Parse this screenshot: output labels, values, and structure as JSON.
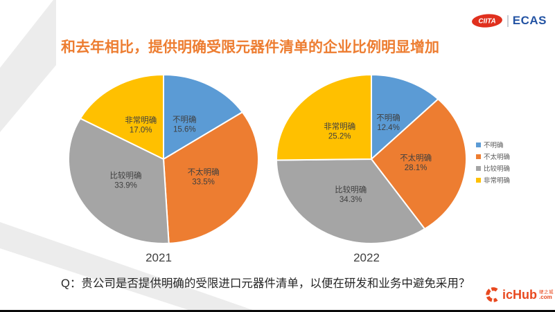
{
  "slide": {
    "title": "和去年相比，提供明确受限元器件清单的企业比例明显增加",
    "question": "Q：贵公司是否提供明确的受限进口元器件清单，以便在研发和业务中避免采用？"
  },
  "header_logo": {
    "ciita_text": "CIITA",
    "ecas_text": "ECAS"
  },
  "footer_logo": {
    "name": "icHub",
    "cn": "硬之城",
    "domain": ".com"
  },
  "colors": {
    "title": "#ED7D31",
    "blue": "#5B9BD5",
    "orange": "#ED7D31",
    "gray": "#A5A5A5",
    "yellow": "#FFC000",
    "ecas_blue": "#2353A3",
    "ciita_red": "#E0301E",
    "ichub_orange": "#E8491F"
  },
  "legend": {
    "items": [
      {
        "label": "不明确",
        "color": "#5B9BD5"
      },
      {
        "label": "不太明确",
        "color": "#ED7D31"
      },
      {
        "label": "比较明确",
        "color": "#A5A5A5"
      },
      {
        "label": "非常明确",
        "color": "#FFC000"
      }
    ]
  },
  "chart_data": [
    {
      "type": "pie",
      "title": "2021",
      "categories": [
        "不明确",
        "不太明确",
        "比较明确",
        "非常明确"
      ],
      "values": [
        15.6,
        33.5,
        33.9,
        17.0
      ],
      "colors": [
        "#5B9BD5",
        "#ED7D31",
        "#A5A5A5",
        "#FFC000"
      ],
      "start_angle_deg": 0,
      "direction": "clockwise",
      "label_format": "category + percent",
      "legend_position": "right"
    },
    {
      "type": "pie",
      "title": "2022",
      "categories": [
        "不明确",
        "不太明确",
        "比较明确",
        "非常明确"
      ],
      "values": [
        12.4,
        28.1,
        34.3,
        25.2
      ],
      "colors": [
        "#5B9BD5",
        "#ED7D31",
        "#A5A5A5",
        "#FFC000"
      ],
      "start_angle_deg": 0,
      "direction": "clockwise",
      "label_format": "category + percent",
      "legend_position": "right"
    }
  ]
}
